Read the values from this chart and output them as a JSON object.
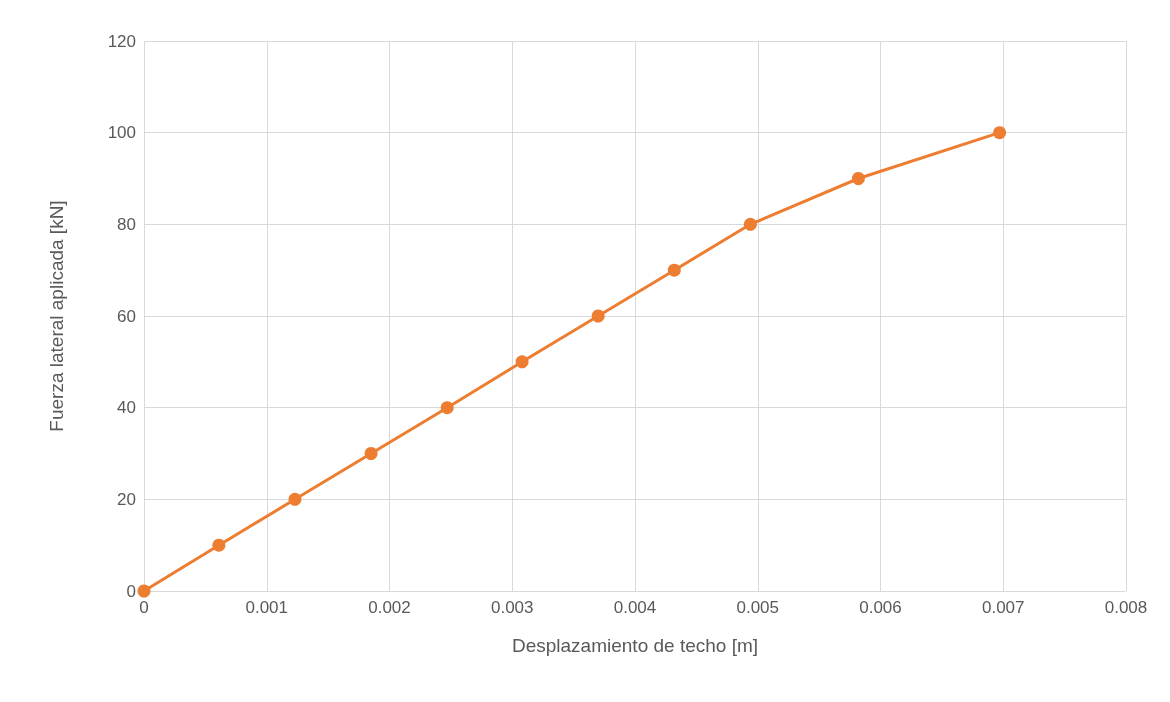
{
  "chart_data": {
    "type": "line",
    "xlabel": "Desplazamiento de techo [m]",
    "ylabel": "Fuerza lateral aplicada [kN]",
    "x": [
      0,
      0.00061,
      0.00123,
      0.00185,
      0.00247,
      0.00308,
      0.0037,
      0.00432,
      0.00494,
      0.00582,
      0.00697
    ],
    "series": [
      {
        "color": "#ed7d31",
        "values": [
          0,
          10,
          20,
          30,
          40,
          50,
          60,
          70,
          80,
          90,
          100
        ]
      }
    ],
    "xlim": [
      0,
      0.008
    ],
    "xticks": [
      0,
      0.001,
      0.002,
      0.003,
      0.004,
      0.005,
      0.006,
      0.007,
      0.008
    ],
    "ylim": [
      0,
      120
    ],
    "yticks": [
      0,
      20,
      40,
      60,
      80,
      100,
      120
    ],
    "grid": true,
    "marker": "circle",
    "line_style": "solid"
  }
}
